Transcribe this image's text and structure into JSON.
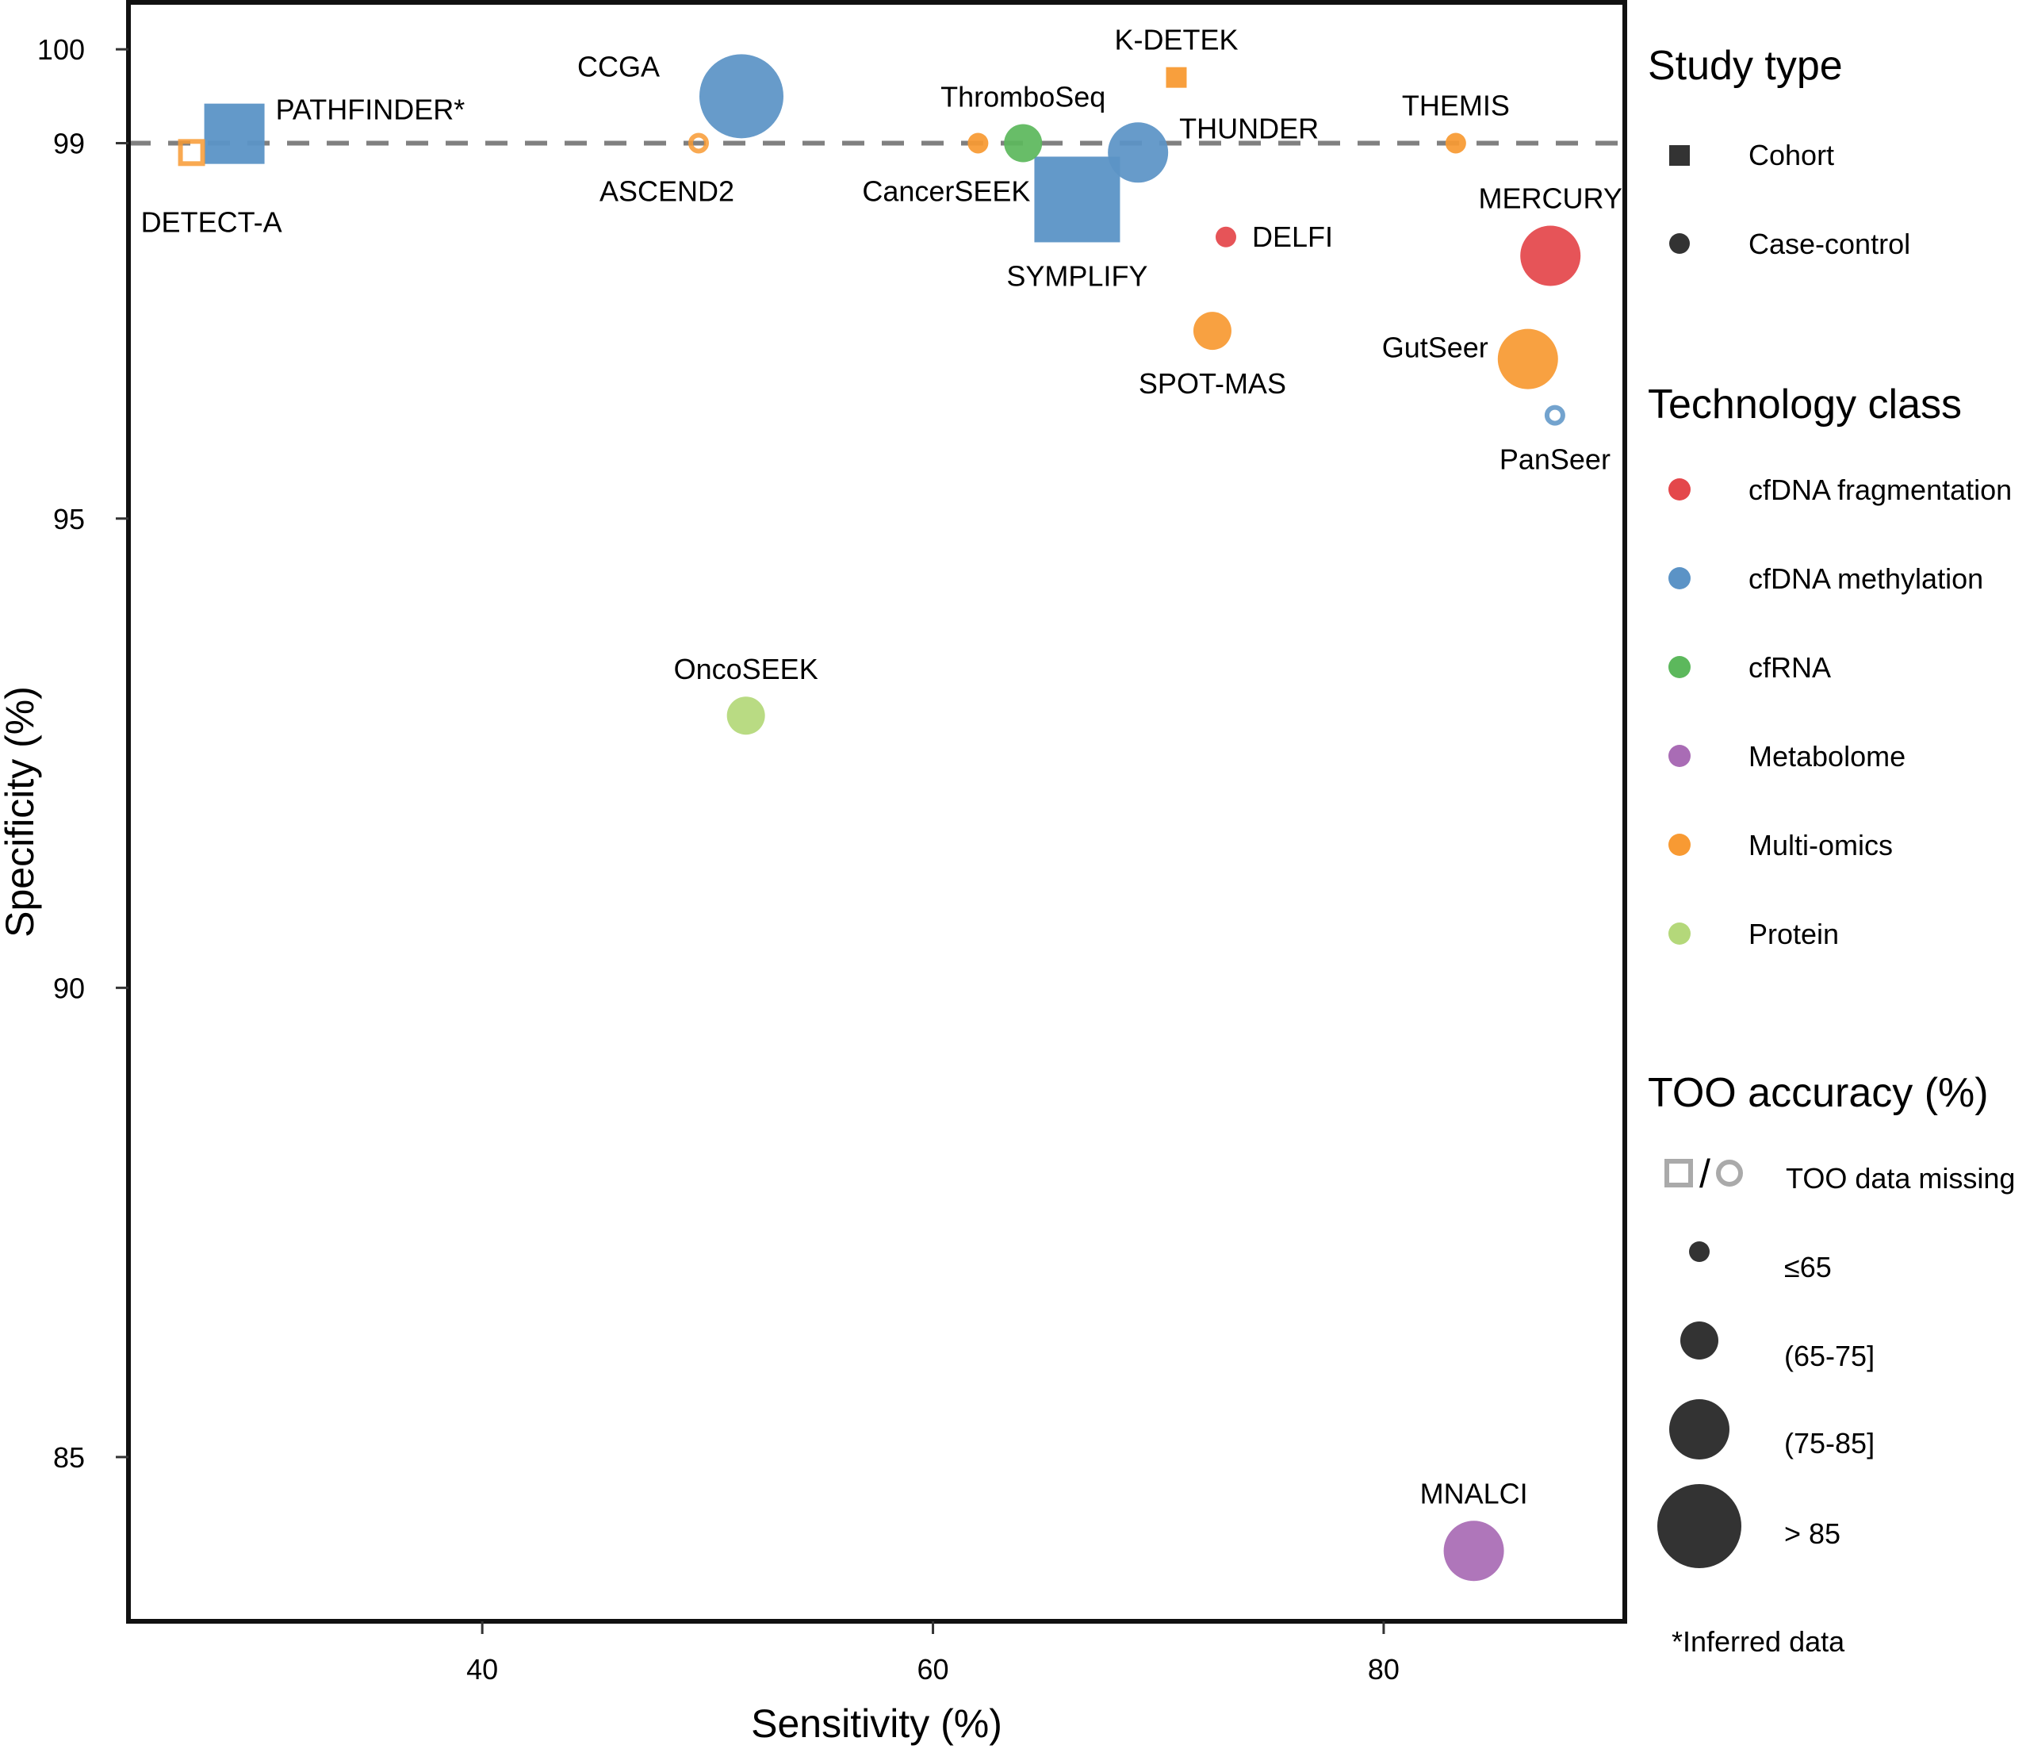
{
  "chart_data": {
    "type": "scatter",
    "title": "",
    "xlabel": "Sensitivity (%)",
    "ylabel": "Specificity (%)",
    "xlim": [
      24.3,
      90.7
    ],
    "ylim": [
      83.25,
      100.5
    ],
    "xticks": [
      40,
      60,
      80
    ],
    "yticks": [
      85,
      90,
      95,
      99,
      100
    ],
    "reference_line": {
      "y": 99,
      "style": "dashed",
      "color": "#808080"
    },
    "grid": false,
    "colors": {
      "cfDNA fragmentation": "#e4474b",
      "cfDNA methylation": "#5b93c6",
      "cfRNA": "#5cb85c",
      "Metabolome": "#a96cb5",
      "Multi-omics": "#f89a33",
      "Protein": "#b4d87a"
    },
    "points": [
      {
        "name": "PATHFINDER*",
        "x": 29.0,
        "y": 99.1,
        "study": "Cohort",
        "tech": "cfDNA methylation",
        "too": "(75-85]",
        "label_pos": "right-top"
      },
      {
        "name": "DETECT-A",
        "x": 27.1,
        "y": 98.9,
        "study": "Cohort",
        "tech": "Multi-omics",
        "too": "missing",
        "label_pos": "below-far"
      },
      {
        "name": "CCGA",
        "x": 51.5,
        "y": 99.5,
        "study": "Case-control",
        "tech": "cfDNA methylation",
        "too": ">85",
        "label_pos": "left-top"
      },
      {
        "name": "ASCEND2",
        "x": 49.6,
        "y": 99.0,
        "study": "Case-control",
        "tech": "Multi-omics",
        "too": "missing",
        "label_pos": "below-left"
      },
      {
        "name": "CancerSEEK",
        "x": 62.0,
        "y": 99.0,
        "study": "Case-control",
        "tech": "Multi-omics",
        "too": "<=65",
        "label_pos": "below-left"
      },
      {
        "name": "ThromboSeq",
        "x": 64.0,
        "y": 99.0,
        "study": "Case-control",
        "tech": "cfRNA",
        "too": "(65-75]",
        "label_pos": "above"
      },
      {
        "name": "SYMPLIFY",
        "x": 66.4,
        "y": 98.4,
        "study": "Cohort",
        "tech": "cfDNA methylation",
        "too": ">85",
        "label_pos": "below"
      },
      {
        "name": "THUNDER",
        "x": 69.1,
        "y": 98.9,
        "study": "Case-control",
        "tech": "cfDNA methylation",
        "too": "(75-85]",
        "label_pos": "right-top"
      },
      {
        "name": "K-DETEK",
        "x": 70.8,
        "y": 99.7,
        "study": "Cohort",
        "tech": "Multi-omics",
        "too": "<=65",
        "label_pos": "above"
      },
      {
        "name": "THEMIS",
        "x": 83.2,
        "y": 99.0,
        "study": "Case-control",
        "tech": "Multi-omics",
        "too": "<=65",
        "label_pos": "above"
      },
      {
        "name": "DELFI",
        "x": 73.0,
        "y": 98.0,
        "study": "Case-control",
        "tech": "cfDNA fragmentation",
        "too": "<=65",
        "label_pos": "right"
      },
      {
        "name": "MERCURY",
        "x": 87.4,
        "y": 97.8,
        "study": "Case-control",
        "tech": "cfDNA fragmentation",
        "too": "(75-85]",
        "label_pos": "above"
      },
      {
        "name": "SPOT-MAS",
        "x": 72.4,
        "y": 97.0,
        "study": "Case-control",
        "tech": "Multi-omics",
        "too": "(65-75]",
        "label_pos": "below"
      },
      {
        "name": "GutSeer",
        "x": 86.4,
        "y": 96.7,
        "study": "Case-control",
        "tech": "Multi-omics",
        "too": "(75-85]",
        "label_pos": "left"
      },
      {
        "name": "PanSeer",
        "x": 87.6,
        "y": 96.1,
        "study": "Case-control",
        "tech": "cfDNA methylation",
        "too": "missing",
        "label_pos": "below"
      },
      {
        "name": "OncoSEEK",
        "x": 51.7,
        "y": 92.9,
        "study": "Case-control",
        "tech": "Protein",
        "too": "(65-75]",
        "label_pos": "above"
      },
      {
        "name": "MNALCI",
        "x": 84.0,
        "y": 84.0,
        "study": "Case-control",
        "tech": "Metabolome",
        "too": "(75-85]",
        "label_pos": "above"
      }
    ],
    "legend": {
      "placement": "right",
      "study_type": {
        "title": "Study type",
        "items": [
          "Cohort",
          "Case-control"
        ]
      },
      "technology_class": {
        "title": "Technology class",
        "items": [
          "cfDNA fragmentation",
          "cfDNA methylation",
          "cfRNA",
          "Metabolome",
          "Multi-omics",
          "Protein"
        ]
      },
      "too_accuracy": {
        "title": "TOO accuracy (%)",
        "items": [
          "TOO data missing",
          "≤65",
          "(65-75]",
          "(75-85]",
          "> 85"
        ]
      },
      "footnote": "*Inferred data"
    }
  }
}
